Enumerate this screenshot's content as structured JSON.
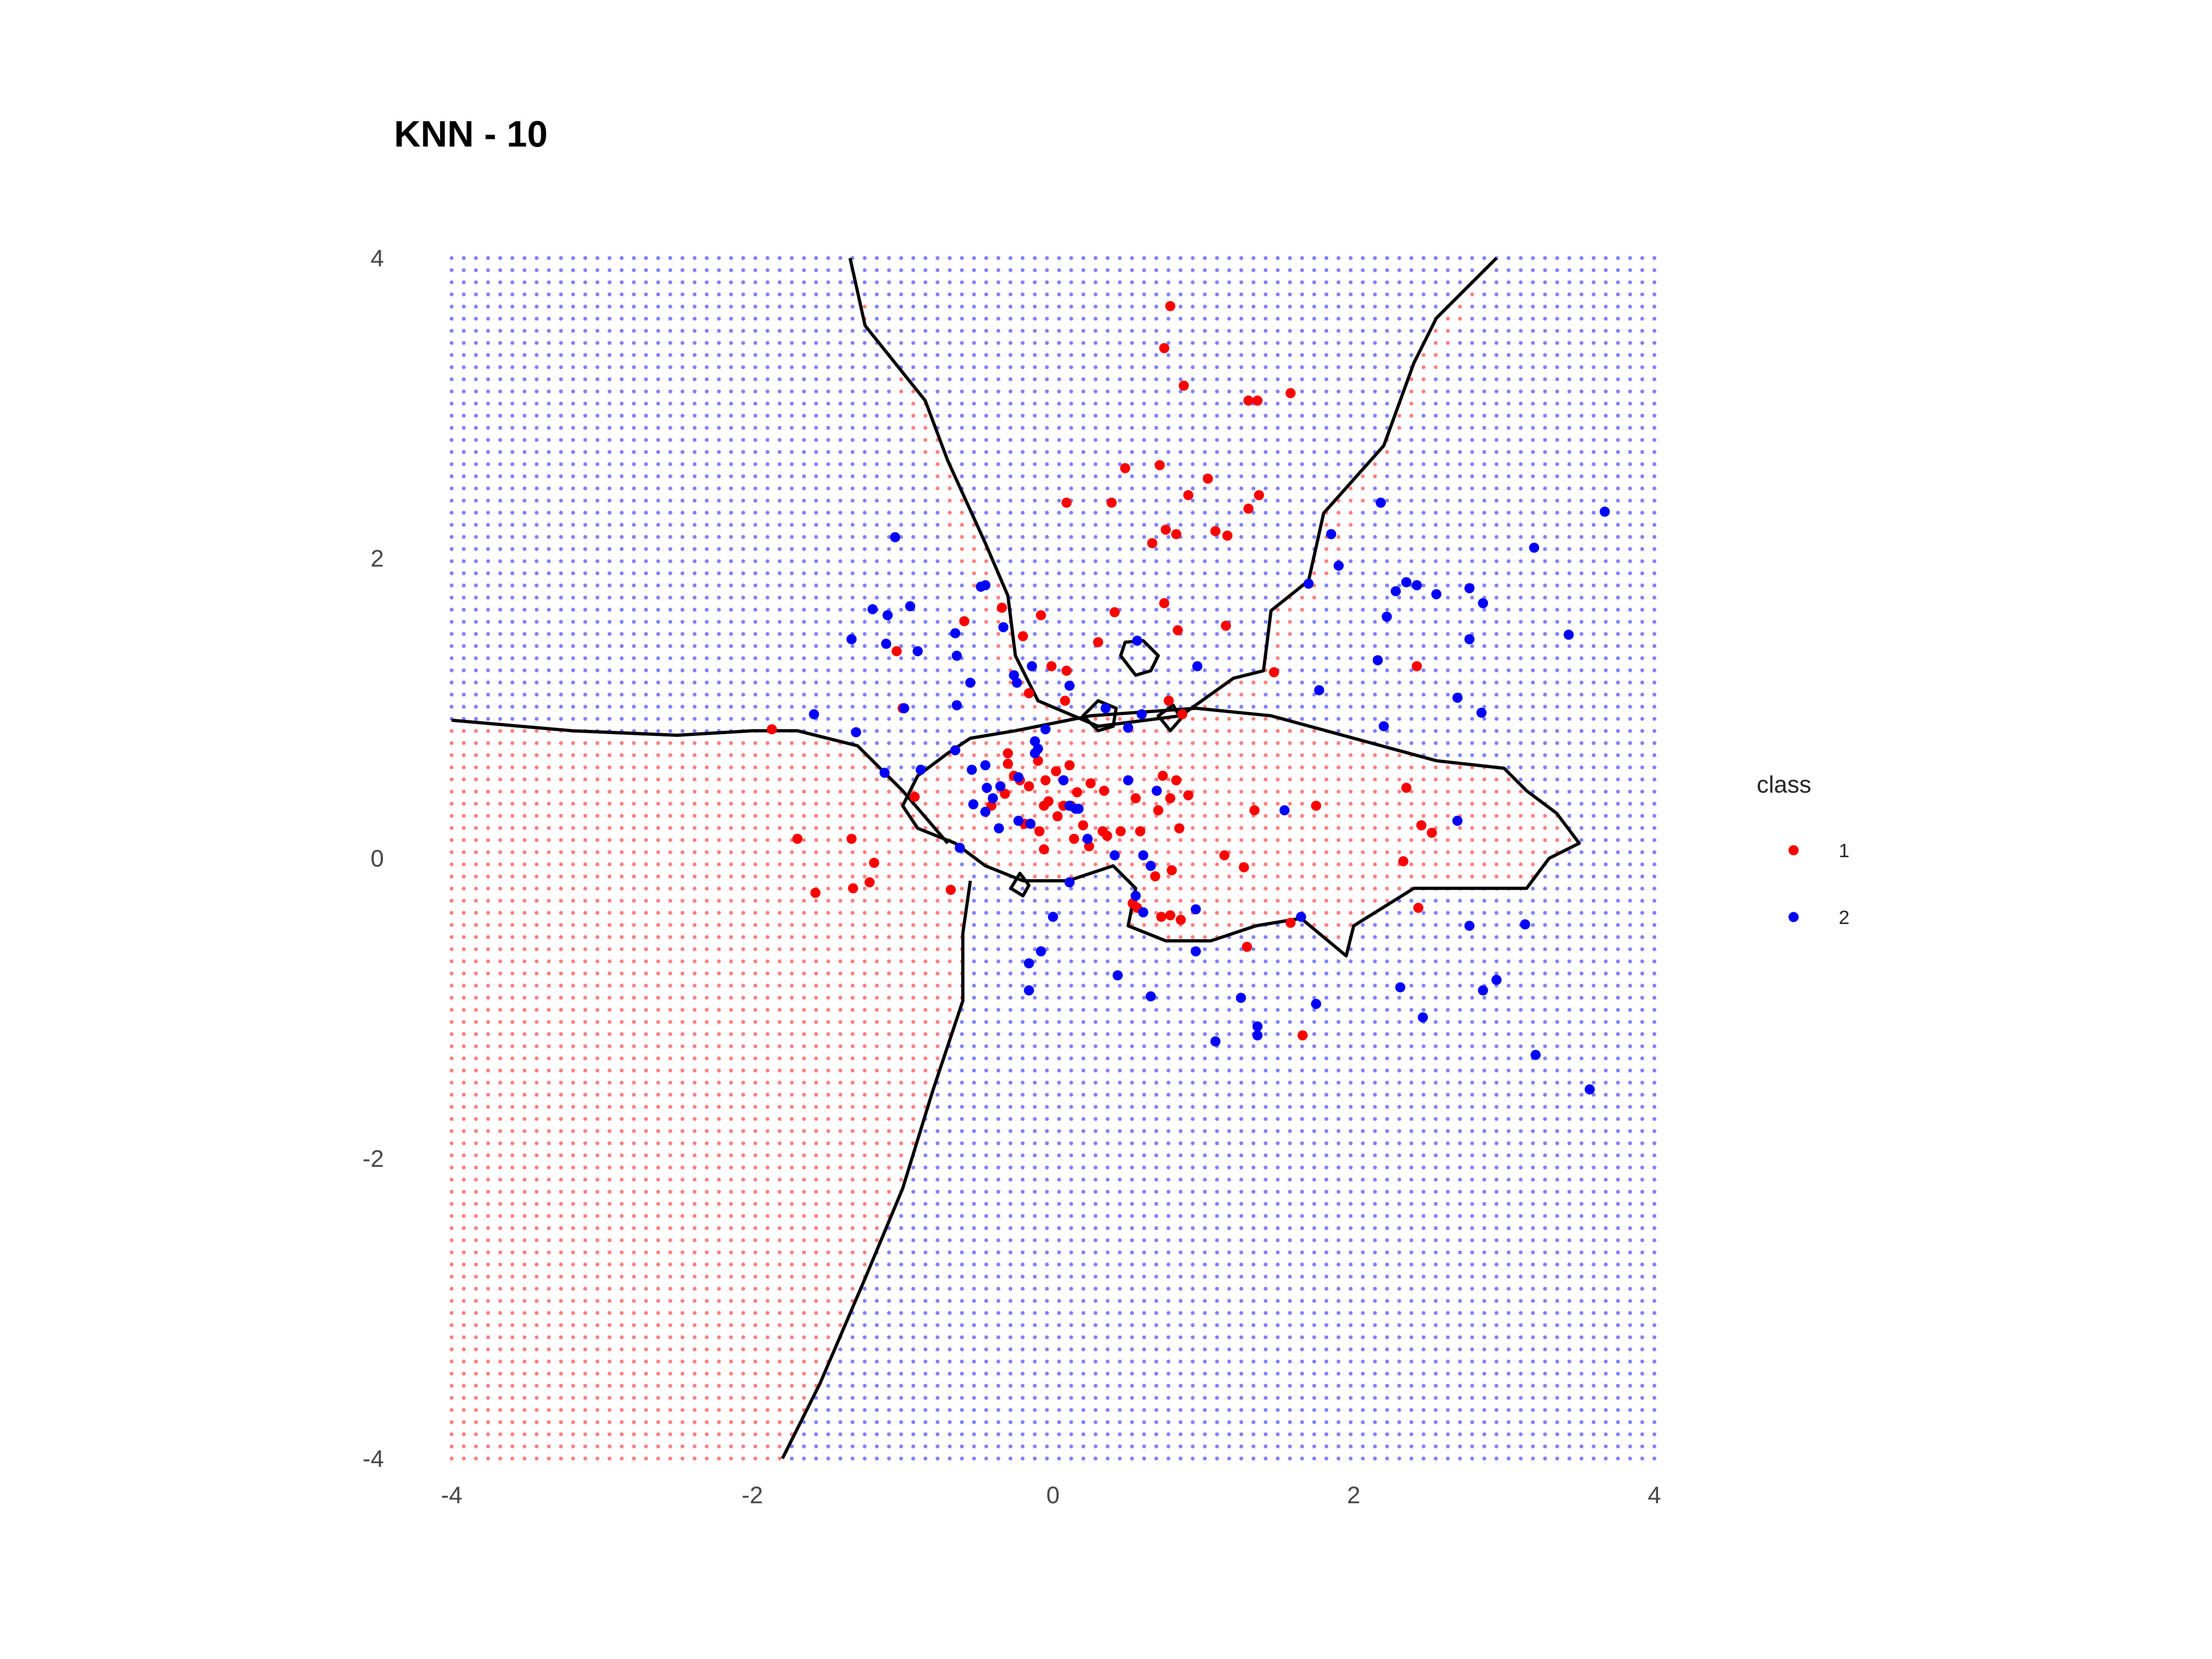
{
  "colors": {
    "class1": "#ff0000",
    "class2": "#0000ff",
    "grid1": "#ff7f7f",
    "grid2": "#7f7fff",
    "boundary": "#000000"
  },
  "chart_data": {
    "type": "scatter",
    "title": "KNN - 10",
    "xlim": [
      -4,
      4
    ],
    "ylim": [
      -4,
      4
    ],
    "x_ticks": [
      "-4",
      "-2",
      "0",
      "2",
      "4"
    ],
    "y_ticks": [
      "4",
      "2",
      "0",
      "-2",
      "-4"
    ],
    "grid": false,
    "legend": {
      "title": "class",
      "placement": "right",
      "entries": [
        "1",
        "2"
      ]
    },
    "background": "dot grid shaded by predicted class with black decision boundary",
    "series": [
      {
        "name": "1",
        "points": [
          [
            0.78,
            3.68
          ],
          [
            0.74,
            3.4
          ],
          [
            0.87,
            3.15
          ],
          [
            1.3,
            3.05
          ],
          [
            1.36,
            3.05
          ],
          [
            1.58,
            3.1
          ],
          [
            0.48,
            2.6
          ],
          [
            0.71,
            2.62
          ],
          [
            1.03,
            2.53
          ],
          [
            0.9,
            2.42
          ],
          [
            1.37,
            2.42
          ],
          [
            1.3,
            2.33
          ],
          [
            0.09,
            2.37
          ],
          [
            0.39,
            2.37
          ],
          [
            0.75,
            2.19
          ],
          [
            0.82,
            2.16
          ],
          [
            0.66,
            2.1
          ],
          [
            1.08,
            2.18
          ],
          [
            1.16,
            2.15
          ],
          [
            0.74,
            1.7
          ],
          [
            0.83,
            1.52
          ],
          [
            1.15,
            1.55
          ],
          [
            0.41,
            1.64
          ],
          [
            -0.08,
            1.62
          ],
          [
            -0.59,
            1.58
          ],
          [
            -0.34,
            1.67
          ],
          [
            -1.04,
            1.38
          ],
          [
            0.3,
            1.44
          ],
          [
            -0.2,
            1.48
          ],
          [
            -0.01,
            1.28
          ],
          [
            0.09,
            1.25
          ],
          [
            -0.16,
            1.1
          ],
          [
            0.08,
            1.05
          ],
          [
            0.77,
            1.05
          ],
          [
            0.86,
            0.96
          ],
          [
            1.47,
            1.24
          ],
          [
            2.42,
            1.28
          ],
          [
            -1.0,
            1.0
          ],
          [
            -1.87,
            0.86
          ],
          [
            -0.92,
            0.41
          ],
          [
            -0.3,
            0.63
          ],
          [
            -0.26,
            0.55
          ],
          [
            -0.3,
            0.7
          ],
          [
            -0.22,
            0.52
          ],
          [
            -0.16,
            0.48
          ],
          [
            -0.1,
            0.65
          ],
          [
            -0.05,
            0.52
          ],
          [
            -0.03,
            0.38
          ],
          [
            0.03,
            0.28
          ],
          [
            0.11,
            0.62
          ],
          [
            0.16,
            0.44
          ],
          [
            0.25,
            0.5
          ],
          [
            0.34,
            0.45
          ],
          [
            -0.06,
            0.35
          ],
          [
            0.02,
            0.58
          ],
          [
            0.2,
            0.22
          ],
          [
            0.33,
            0.18
          ],
          [
            0.45,
            0.18
          ],
          [
            0.58,
            0.18
          ],
          [
            0.7,
            0.32
          ],
          [
            0.78,
            0.4
          ],
          [
            0.84,
            0.2
          ],
          [
            0.73,
            0.55
          ],
          [
            0.82,
            0.52
          ],
          [
            0.9,
            0.42
          ],
          [
            0.55,
            0.4
          ],
          [
            0.14,
            0.13
          ],
          [
            0.24,
            0.08
          ],
          [
            0.36,
            0.15
          ],
          [
            -0.19,
            0.23
          ],
          [
            -0.09,
            0.18
          ],
          [
            -0.32,
            0.43
          ],
          [
            -0.41,
            0.35
          ],
          [
            -0.06,
            0.06
          ],
          [
            0.07,
            0.35
          ],
          [
            0.12,
            0.35
          ],
          [
            1.34,
            0.32
          ],
          [
            1.75,
            0.35
          ],
          [
            2.35,
            0.47
          ],
          [
            2.45,
            0.22
          ],
          [
            2.52,
            0.17
          ],
          [
            2.33,
            -0.02
          ],
          [
            -1.7,
            0.13
          ],
          [
            -1.34,
            0.13
          ],
          [
            -1.58,
            -0.23
          ],
          [
            -1.33,
            -0.2
          ],
          [
            -1.22,
            -0.16
          ],
          [
            -1.19,
            -0.03
          ],
          [
            -0.68,
            -0.21
          ],
          [
            0.68,
            -0.12
          ],
          [
            0.79,
            -0.08
          ],
          [
            1.14,
            0.02
          ],
          [
            1.27,
            -0.06
          ],
          [
            0.53,
            -0.3
          ],
          [
            0.78,
            -0.38
          ],
          [
            0.85,
            -0.41
          ],
          [
            1.29,
            -0.59
          ],
          [
            1.58,
            -0.43
          ],
          [
            1.66,
            -1.18
          ],
          [
            2.43,
            -0.33
          ],
          [
            0.56,
            -0.33
          ],
          [
            0.72,
            -0.39
          ]
        ]
      },
      {
        "name": "2",
        "points": [
          [
            3.67,
            2.31
          ],
          [
            3.2,
            2.07
          ],
          [
            2.18,
            2.37
          ],
          [
            1.85,
            2.16
          ],
          [
            1.9,
            1.95
          ],
          [
            1.7,
            1.83
          ],
          [
            2.35,
            1.84
          ],
          [
            2.42,
            1.82
          ],
          [
            2.28,
            1.78
          ],
          [
            2.55,
            1.76
          ],
          [
            2.77,
            1.8
          ],
          [
            2.86,
            1.7
          ],
          [
            2.22,
            1.61
          ],
          [
            2.77,
            1.46
          ],
          [
            3.43,
            1.49
          ],
          [
            2.16,
            1.32
          ],
          [
            1.77,
            1.12
          ],
          [
            2.69,
            1.07
          ],
          [
            2.85,
            0.97
          ],
          [
            2.2,
            0.88
          ],
          [
            2.69,
            0.25
          ],
          [
            1.54,
            0.32
          ],
          [
            -1.05,
            2.14
          ],
          [
            -0.48,
            1.81
          ],
          [
            -0.45,
            1.82
          ],
          [
            -1.2,
            1.66
          ],
          [
            -1.1,
            1.62
          ],
          [
            -0.95,
            1.68
          ],
          [
            -0.33,
            1.54
          ],
          [
            -1.34,
            1.46
          ],
          [
            -1.11,
            1.43
          ],
          [
            -0.9,
            1.38
          ],
          [
            -0.65,
            1.5
          ],
          [
            -0.64,
            1.35
          ],
          [
            -0.14,
            1.28
          ],
          [
            0.56,
            1.45
          ],
          [
            0.96,
            1.28
          ],
          [
            -0.24,
            1.17
          ],
          [
            -0.55,
            1.17
          ],
          [
            -0.26,
            1.22
          ],
          [
            0.11,
            1.15
          ],
          [
            0.35,
            1.0
          ],
          [
            0.59,
            0.96
          ],
          [
            0.5,
            0.87
          ],
          [
            -1.59,
            0.96
          ],
          [
            -0.99,
            1.0
          ],
          [
            -0.64,
            1.02
          ],
          [
            -1.31,
            0.84
          ],
          [
            -0.05,
            0.86
          ],
          [
            -0.12,
            0.78
          ],
          [
            -0.65,
            0.72
          ],
          [
            -1.12,
            0.57
          ],
          [
            -0.88,
            0.59
          ],
          [
            -0.45,
            0.62
          ],
          [
            -0.54,
            0.59
          ],
          [
            -0.44,
            0.47
          ],
          [
            -0.4,
            0.4
          ],
          [
            -0.35,
            0.48
          ],
          [
            -0.23,
            0.54
          ],
          [
            -0.1,
            0.73
          ],
          [
            -0.12,
            0.7
          ],
          [
            0.07,
            0.52
          ],
          [
            0.11,
            0.35
          ],
          [
            0.15,
            0.33
          ],
          [
            0.5,
            0.52
          ],
          [
            0.69,
            0.45
          ],
          [
            -0.53,
            0.36
          ],
          [
            -0.45,
            0.31
          ],
          [
            -0.23,
            0.25
          ],
          [
            -0.15,
            0.23
          ],
          [
            -0.36,
            0.2
          ],
          [
            0.17,
            0.33
          ],
          [
            0.23,
            0.13
          ],
          [
            0.41,
            0.02
          ],
          [
            -0.62,
            0.07
          ],
          [
            0.55,
            -0.25
          ],
          [
            0.6,
            -0.36
          ],
          [
            0.95,
            -0.34
          ],
          [
            0.6,
            0.02
          ],
          [
            0.65,
            -0.05
          ],
          [
            0.11,
            -0.16
          ],
          [
            0.0,
            -0.39
          ],
          [
            -0.08,
            -0.62
          ],
          [
            -0.16,
            -0.7
          ],
          [
            -0.16,
            -0.88
          ],
          [
            0.43,
            -0.78
          ],
          [
            0.65,
            -0.92
          ],
          [
            0.95,
            -0.62
          ],
          [
            1.08,
            -1.22
          ],
          [
            1.36,
            -1.12
          ],
          [
            1.36,
            -1.18
          ],
          [
            1.25,
            -0.93
          ],
          [
            1.65,
            -0.39
          ],
          [
            1.75,
            -0.97
          ],
          [
            2.31,
            -0.86
          ],
          [
            2.46,
            -1.06
          ],
          [
            2.77,
            -0.45
          ],
          [
            2.86,
            -0.88
          ],
          [
            2.95,
            -0.81
          ],
          [
            3.14,
            -0.44
          ],
          [
            3.21,
            -1.31
          ],
          [
            3.57,
            -1.54
          ]
        ]
      }
    ]
  }
}
